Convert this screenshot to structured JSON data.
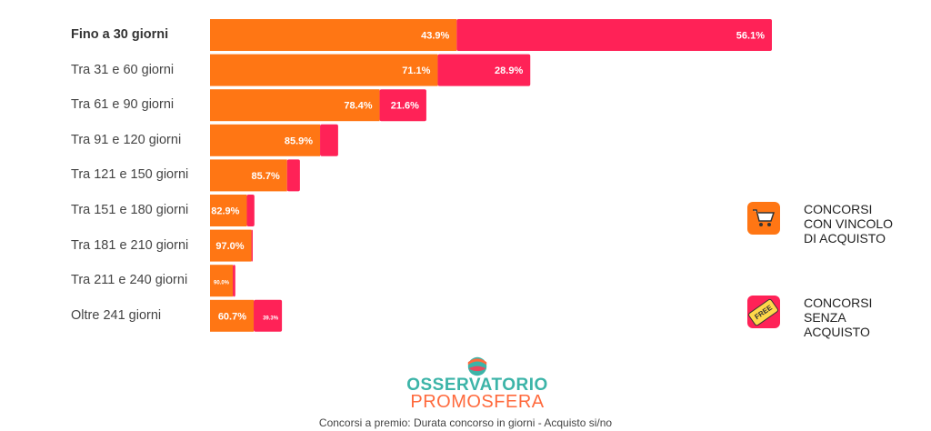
{
  "chart_data": {
    "type": "bar",
    "orientation": "horizontal",
    "stacked": true,
    "categories": [
      "Fino a 30 giorni",
      "Tra 31 e 60 giorni",
      "Tra 61 e 90 giorni",
      "Tra 91 e 120 giorni",
      "Tra 121 e 150 giorni",
      "Tra 151 e 180 giorni",
      "Tra 181 e 210 giorni",
      "Tra 211 e 240 giorni",
      "Oltre 241 giorni"
    ],
    "relative_total": [
      100,
      57,
      38.5,
      22.8,
      16,
      7.9,
      7.6,
      4.5,
      12.8
    ],
    "series": [
      {
        "name": "CONCORSI CON VINCOLO DI ACQUISTO",
        "color": "#ff7614",
        "values": [
          43.9,
          71.1,
          78.4,
          85.9,
          85.7,
          82.9,
          97.0,
          90.0,
          60.7
        ],
        "labels": [
          "43.9%",
          "71.1%",
          "78.4%",
          "85.9%",
          "85.7%",
          "82.9%",
          "97.0%",
          "90.0%",
          "60.7%"
        ]
      },
      {
        "name": "CONCORSI SENZA ACQUISTO",
        "color": "#ff2257",
        "values": [
          56.1,
          28.9,
          21.6,
          14.1,
          14.3,
          17.1,
          3.0,
          10.0,
          39.3
        ],
        "labels": [
          "56.1%",
          "28.9%",
          "21.6%",
          "",
          "",
          "",
          "",
          "",
          "39.3%"
        ]
      }
    ],
    "legend": "right"
  },
  "legend": {
    "purchase": "CONCORSI CON VINCOLO DI ACQUISTO",
    "purchase_lines": [
      "CONCORSI",
      "CON VINCOLO",
      "DI ACQUISTO"
    ],
    "free": "CONCORSI SENZA ACQUISTO",
    "free_lines": [
      "CONCORSI",
      "SENZA",
      "ACQUISTO"
    ],
    "free_tag": "FREE"
  },
  "logo": {
    "line1": "OSSERVATORIO",
    "line2": "PROMOSFERA"
  },
  "caption": "Concorsi a premio: Durata concorso in giorni - Acquisto si/no"
}
